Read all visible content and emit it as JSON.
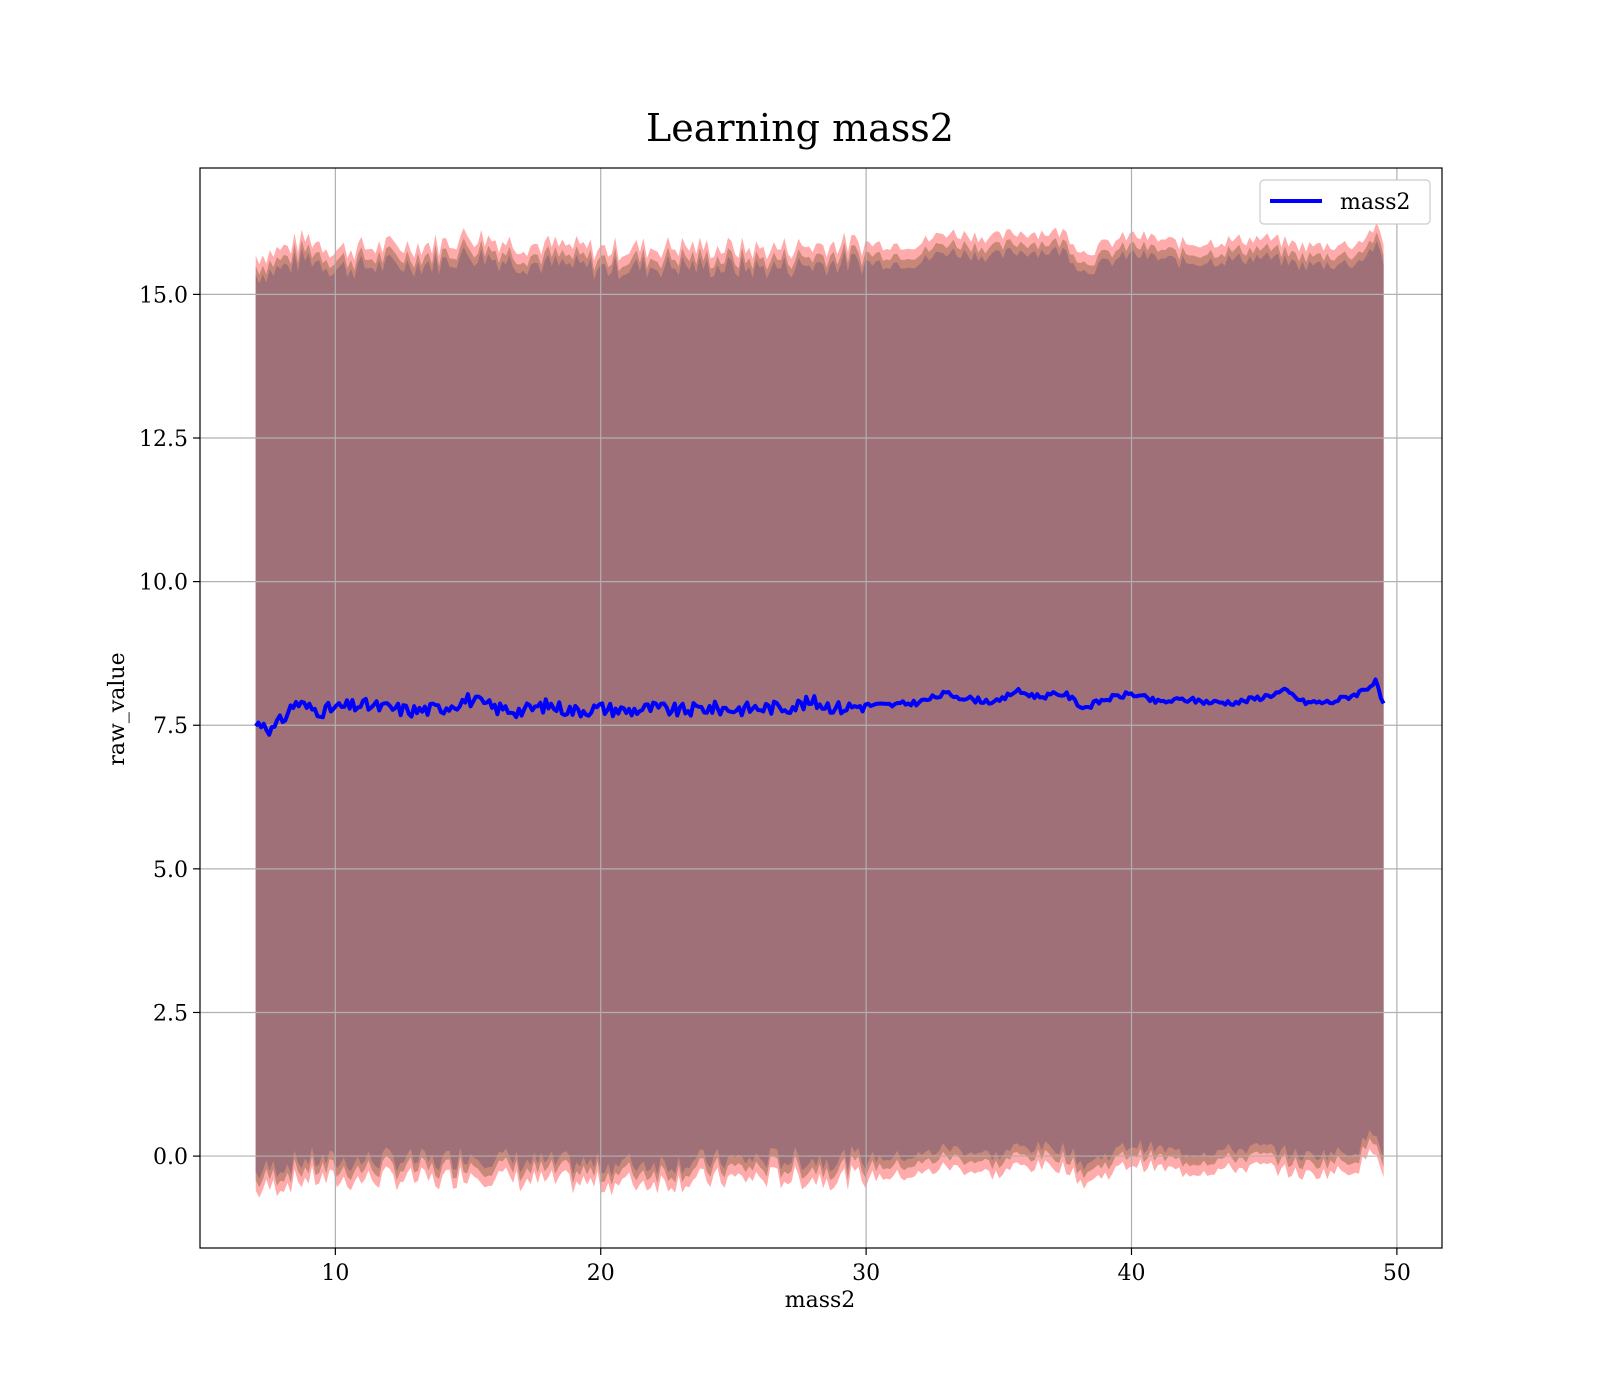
{
  "chart_data": {
    "type": "line",
    "title": "Learning mass2",
    "xlabel": "mass2",
    "ylabel": "raw_value",
    "xlim": [
      4.9,
      51.7
    ],
    "ylim": [
      -1.6,
      17.2
    ],
    "x_ticks": [
      10,
      20,
      30,
      40,
      50
    ],
    "x_tick_labels": [
      "10",
      "20",
      "30",
      "40",
      "50"
    ],
    "y_ticks": [
      0.0,
      2.5,
      5.0,
      7.5,
      10.0,
      12.5,
      15.0
    ],
    "y_tick_labels": [
      "0.0",
      "2.5",
      "5.0",
      "7.5",
      "10.0",
      "12.5",
      "15.0"
    ],
    "grid": true,
    "legend": {
      "position": "top-right",
      "entries": [
        "mass2"
      ]
    },
    "colors": {
      "line": "#0000ff",
      "band_outer": "#ff6666",
      "band_inner": "#a07078",
      "band_mid": "#c08070",
      "grid": "#b0b0b0"
    },
    "series": [
      {
        "name": "mass2",
        "type": "line",
        "x": [
          7.0,
          7.3,
          7.6,
          8.0,
          8.5,
          9.0,
          9.5,
          10.0,
          11.0,
          12.0,
          13.0,
          14.0,
          15.0,
          16.0,
          17.0,
          18.0,
          19.0,
          20.0,
          21.0,
          22.0,
          23.0,
          24.0,
          25.0,
          26.0,
          27.0,
          28.0,
          29.0,
          30.0,
          31.0,
          32.0,
          33.0,
          34.0,
          35.0,
          35.6,
          36.5,
          37.5,
          38.2,
          39.0,
          40.0,
          41.0,
          42.0,
          43.0,
          44.0,
          45.0,
          45.8,
          46.5,
          47.5,
          48.5,
          49.2,
          49.5
        ],
        "y": [
          7.5,
          7.55,
          7.4,
          7.6,
          7.9,
          7.8,
          7.75,
          7.8,
          7.85,
          7.8,
          7.75,
          7.8,
          7.95,
          7.8,
          7.75,
          7.85,
          7.75,
          7.8,
          7.75,
          7.8,
          7.75,
          7.8,
          7.78,
          7.8,
          7.82,
          7.9,
          7.8,
          7.85,
          7.85,
          7.9,
          8.05,
          7.95,
          7.9,
          8.1,
          8.0,
          8.05,
          7.8,
          7.95,
          8.05,
          7.9,
          7.95,
          7.9,
          7.9,
          8.0,
          8.1,
          7.9,
          7.9,
          8.05,
          8.25,
          7.85
        ]
      }
    ],
    "bands": [
      {
        "x": [
          7.0,
          8.0,
          9.0,
          10.0,
          12.0,
          14.0,
          15.0,
          17.0,
          20.0,
          23.0,
          26.0,
          29.0,
          32.0,
          33.0,
          35.0,
          35.6,
          37.5,
          38.2,
          40.0,
          42.0,
          45.0,
          46.5,
          48.5,
          49.2,
          49.5
        ],
        "upper": [
          15.5,
          15.6,
          15.8,
          15.6,
          15.65,
          15.7,
          15.85,
          15.7,
          15.6,
          15.65,
          15.6,
          15.7,
          15.7,
          15.9,
          15.8,
          15.9,
          15.9,
          15.55,
          15.85,
          15.7,
          15.8,
          15.65,
          15.7,
          16.0,
          15.7
        ],
        "lower": [
          -0.45,
          -0.3,
          -0.2,
          -0.25,
          -0.2,
          -0.25,
          -0.1,
          -0.25,
          -0.3,
          -0.25,
          -0.2,
          -0.2,
          -0.15,
          0.0,
          -0.15,
          0.0,
          0.0,
          -0.3,
          0.05,
          -0.1,
          0.0,
          -0.15,
          -0.05,
          0.35,
          -0.1
        ]
      }
    ]
  }
}
